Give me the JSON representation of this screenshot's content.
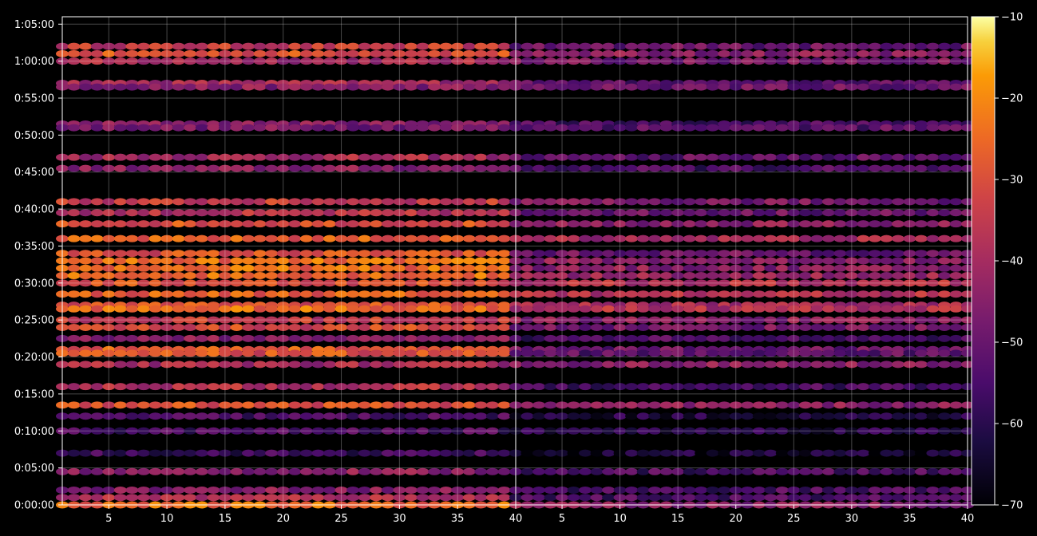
{
  "chart_data": {
    "type": "heatmap",
    "title": "",
    "colormap": "inferno",
    "background": "#000000",
    "grid": true,
    "x_range": [
      1,
      40
    ],
    "y_range_seconds": [
      0,
      3960
    ],
    "panels": [
      {
        "name": "",
        "xticks": [
          "5",
          "10",
          "15",
          "20",
          "25",
          "30",
          "35",
          "40"
        ],
        "bands": [
          {
            "t": "1:02:00",
            "v": -35
          },
          {
            "t": "1:01:00",
            "v": -30
          },
          {
            "t": "1:00:00",
            "v": -40
          },
          {
            "t": "0:57:00",
            "v": -40
          },
          {
            "t": "0:56:30",
            "v": -45
          },
          {
            "t": "0:51:30",
            "v": -45
          },
          {
            "t": "0:51:00",
            "v": -47
          },
          {
            "t": "0:47:00",
            "v": -40
          },
          {
            "t": "0:45:30",
            "v": -45
          },
          {
            "t": "0:41:00",
            "v": -35
          },
          {
            "t": "0:39:30",
            "v": -38
          },
          {
            "t": "0:38:00",
            "v": -30
          },
          {
            "t": "0:36:00",
            "v": -28
          },
          {
            "t": "0:34:00",
            "v": -30
          },
          {
            "t": "0:33:00",
            "v": -25
          },
          {
            "t": "0:32:00",
            "v": -25
          },
          {
            "t": "0:31:00",
            "v": -25
          },
          {
            "t": "0:30:00",
            "v": -30
          },
          {
            "t": "0:28:30",
            "v": -27
          },
          {
            "t": "0:27:00",
            "v": -30
          },
          {
            "t": "0:26:30",
            "v": -25
          },
          {
            "t": "0:25:00",
            "v": -35
          },
          {
            "t": "0:24:00",
            "v": -32
          },
          {
            "t": "0:22:30",
            "v": -45
          },
          {
            "t": "0:21:00",
            "v": -28
          },
          {
            "t": "0:20:30",
            "v": -30
          },
          {
            "t": "0:19:00",
            "v": -40
          },
          {
            "t": "0:16:00",
            "v": -38
          },
          {
            "t": "0:13:30",
            "v": -30
          },
          {
            "t": "0:12:00",
            "v": -55
          },
          {
            "t": "0:10:00",
            "v": -55
          },
          {
            "t": "0:07:00",
            "v": -57
          },
          {
            "t": "0:04:30",
            "v": -45
          },
          {
            "t": "0:02:00",
            "v": -45
          },
          {
            "t": "0:01:00",
            "v": -38
          },
          {
            "t": "0:00:00",
            "v": -25
          }
        ]
      },
      {
        "name": "",
        "xticks": [
          "5",
          "10",
          "15",
          "20",
          "25",
          "30",
          "35",
          "40"
        ],
        "bands": [
          {
            "t": "1:02:00",
            "v": -50
          },
          {
            "t": "1:01:00",
            "v": -45
          },
          {
            "t": "1:00:00",
            "v": -48
          },
          {
            "t": "0:57:00",
            "v": -52
          },
          {
            "t": "0:56:30",
            "v": -50
          },
          {
            "t": "0:51:30",
            "v": -55
          },
          {
            "t": "0:51:00",
            "v": -52
          },
          {
            "t": "0:47:00",
            "v": -52
          },
          {
            "t": "0:45:30",
            "v": -55
          },
          {
            "t": "0:41:00",
            "v": -48
          },
          {
            "t": "0:39:30",
            "v": -50
          },
          {
            "t": "0:38:00",
            "v": -45
          },
          {
            "t": "0:36:00",
            "v": -40
          },
          {
            "t": "0:34:00",
            "v": -50
          },
          {
            "t": "0:33:00",
            "v": -45
          },
          {
            "t": "0:32:00",
            "v": -45
          },
          {
            "t": "0:31:00",
            "v": -42
          },
          {
            "t": "0:30:00",
            "v": -38
          },
          {
            "t": "0:28:30",
            "v": -38
          },
          {
            "t": "0:27:00",
            "v": -40
          },
          {
            "t": "0:26:30",
            "v": -38
          },
          {
            "t": "0:25:00",
            "v": -45
          },
          {
            "t": "0:24:00",
            "v": -48
          },
          {
            "t": "0:22:30",
            "v": -55
          },
          {
            "t": "0:21:00",
            "v": -50
          },
          {
            "t": "0:20:30",
            "v": -52
          },
          {
            "t": "0:19:00",
            "v": -45
          },
          {
            "t": "0:16:00",
            "v": -55
          },
          {
            "t": "0:13:30",
            "v": -45
          },
          {
            "t": "0:12:00",
            "v": -62
          },
          {
            "t": "0:10:00",
            "v": -60
          },
          {
            "t": "0:07:00",
            "v": -64
          },
          {
            "t": "0:04:30",
            "v": -55
          },
          {
            "t": "0:02:00",
            "v": -55
          },
          {
            "t": "0:01:00",
            "v": -55
          },
          {
            "t": "0:00:00",
            "v": -45
          }
        ]
      }
    ],
    "yticks": [
      "0:00:00",
      "0:05:00",
      "0:10:00",
      "0:15:00",
      "0:20:00",
      "0:25:00",
      "0:30:00",
      "0:35:00",
      "0:40:00",
      "0:45:00",
      "0:50:00",
      "0:55:00",
      "1:00:00",
      "1:05:00"
    ],
    "colorbar": {
      "vmin": -70,
      "vmax": -10,
      "ticks": [
        "−10",
        "−20",
        "−30",
        "−40",
        "−50",
        "−60",
        "−70"
      ]
    }
  }
}
